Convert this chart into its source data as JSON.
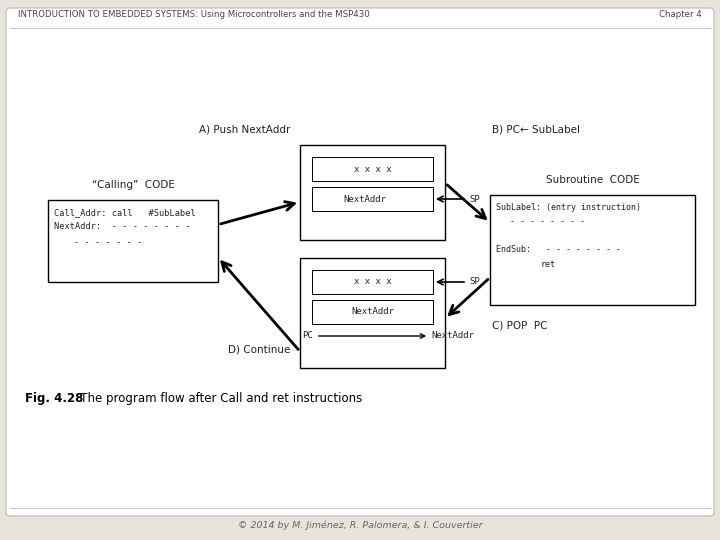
{
  "background_color": "#e8e4dc",
  "white_box_color": "#ffffff",
  "title_text": "INTRODUCTION TO EMBEDDED SYSTEMS: Using Microcontrollers and the MSP430",
  "chapter_text": "Chapter 4",
  "footer_text": "© 2014 by M. Jiménez, R. Palomera, & I. Couvertier",
  "fig_caption_bold": "Fig. 4.28",
  "fig_caption_rest": "   The program flow after Call and ret instructions",
  "calling_label": "“Calling”  CODE",
  "subroutine_label": "Subroutine  CODE",
  "label_A": "A) Push NextAddr",
  "label_B": "B) PC← SubLabel",
  "label_C": "C) POP  PC",
  "label_D": "D) Continue",
  "text_color": "#222222",
  "header_color": "#444444"
}
